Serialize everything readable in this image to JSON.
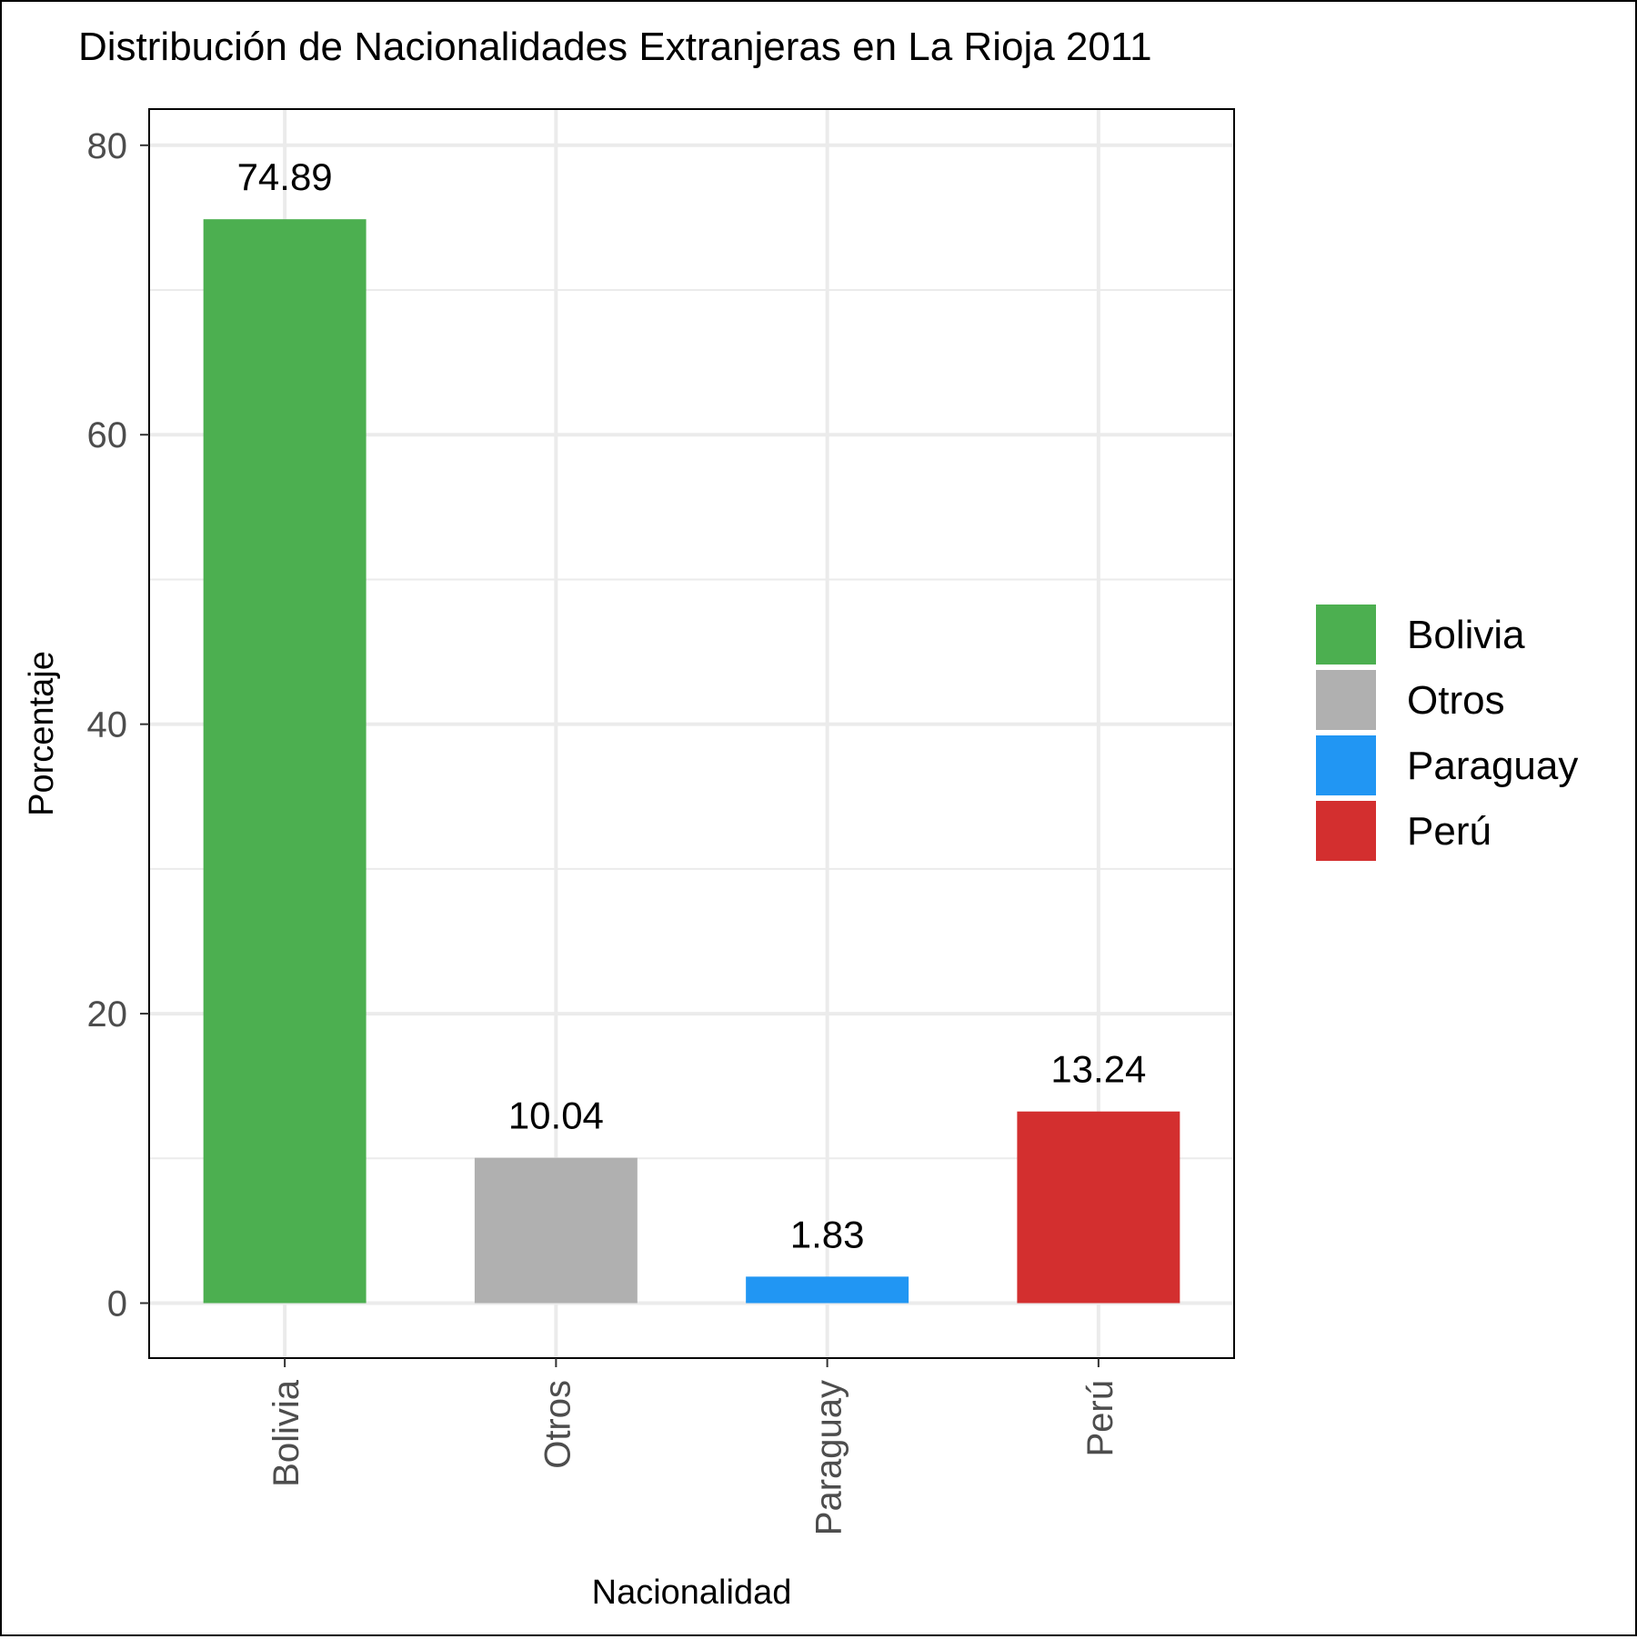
{
  "chart_data": {
    "type": "bar",
    "title": "Distribución de Nacionalidades Extranjeras en La Rioja 2011",
    "xlabel": "Nacionalidad",
    "ylabel": "Porcentaje",
    "categories": [
      "Bolivia",
      "Otros",
      "Paraguay",
      "Perú"
    ],
    "values": [
      74.89,
      10.04,
      1.83,
      13.24
    ],
    "value_labels": [
      "74.89",
      "10.04",
      "1.83",
      "13.24"
    ],
    "colors": [
      "#4caf50",
      "#b0b0b0",
      "#2196f3",
      "#d32f2f"
    ],
    "yticks": [
      0,
      20,
      40,
      60,
      80
    ],
    "ylim": [
      -3.8,
      82.5
    ],
    "grid": true,
    "legend": {
      "placement": "right",
      "entries": [
        "Bolivia",
        "Otros",
        "Paraguay",
        "Perú"
      ]
    }
  }
}
